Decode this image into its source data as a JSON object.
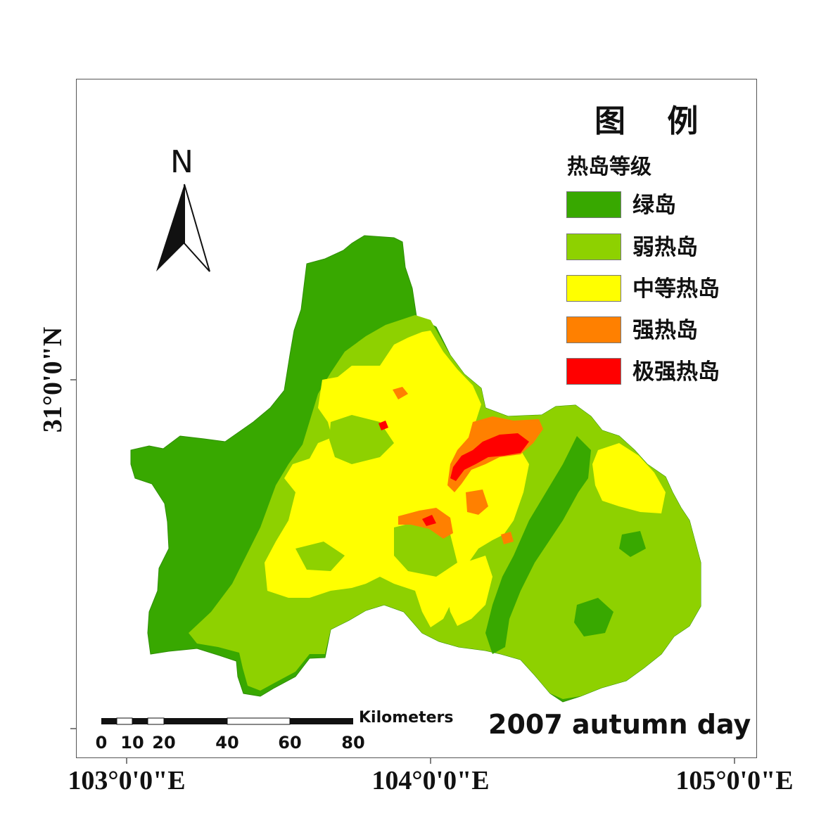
{
  "legend": {
    "title": "图 例",
    "subtitle": "热岛等级",
    "classes": [
      {
        "label": "绿岛",
        "color": "#38a800"
      },
      {
        "label": "弱热岛",
        "color": "#8ed100"
      },
      {
        "label": "中等热岛",
        "color": "#ffff00"
      },
      {
        "label": "强热岛",
        "color": "#ff8000"
      },
      {
        "label": "极强热岛",
        "color": "#ff0000"
      }
    ]
  },
  "map_title": "2007 autumn day",
  "north_arrow": {
    "label": "N",
    "icon": "north-arrow-icon"
  },
  "scale_bar": {
    "unit": "Kilometers",
    "ticks": [
      "0",
      "10",
      "20",
      "40",
      "60",
      "80"
    ]
  },
  "graticule": {
    "longitude_labels": [
      "103°0'0\"E",
      "104°0'0\"E",
      "105°0'0\"E"
    ],
    "latitude_labels": [
      "31°0'0\"N"
    ]
  }
}
